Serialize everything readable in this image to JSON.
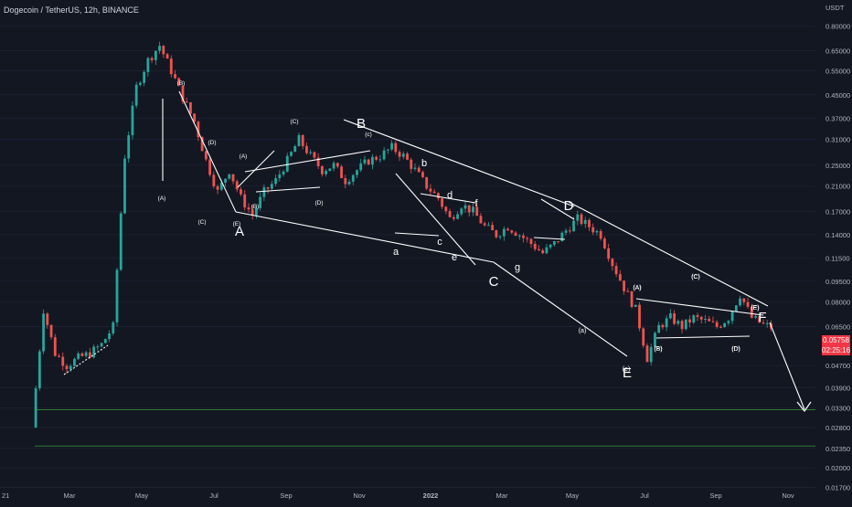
{
  "header": {
    "title": "Dogecoin / TetherUS, 12h, BINANCE"
  },
  "axis": {
    "currency": "USDT"
  },
  "current": {
    "price": "0.05758",
    "countdown": "02:25:16",
    "value": 0.05758
  },
  "colors": {
    "background": "#131722",
    "up": "#26a69a",
    "down": "#ef5350",
    "wave_line": "#ffffff",
    "support": "#2e7d32",
    "badge": "#f23645",
    "axis_text": "#b2b5be"
  },
  "chart_data": {
    "type": "candlestick",
    "title": "Dogecoin / TetherUS, 12h, BINANCE",
    "y_scale": "log",
    "ylim": [
      0.0168,
      0.92
    ],
    "y_ticks": [
      "0.80000",
      "0.65000",
      "0.55000",
      "0.45000",
      "0.37000",
      "0.31000",
      "0.25000",
      "0.21000",
      "0.17000",
      "0.14000",
      "0.11500",
      "0.09500",
      "0.08000",
      "0.06500",
      "0.04700",
      "0.03900",
      "0.03300",
      "0.02800",
      "0.02350",
      "0.02000",
      "0.01700"
    ],
    "x_ticks": [
      "21",
      "Mar",
      "May",
      "Jul",
      "Sep",
      "Nov",
      "2022",
      "Mar",
      "May",
      "Jul",
      "Sep",
      "Nov"
    ],
    "price_path": [
      [
        0,
        0.028
      ],
      [
        1,
        0.075
      ],
      [
        2,
        0.052
      ],
      [
        3,
        0.047
      ],
      [
        4,
        0.05
      ],
      [
        5,
        0.052
      ],
      [
        6,
        0.056
      ],
      [
        7,
        0.065
      ],
      [
        8,
        0.27
      ],
      [
        9,
        0.48
      ],
      [
        10,
        0.6
      ],
      [
        11,
        0.68
      ],
      [
        12,
        0.55
      ],
      [
        13,
        0.44
      ],
      [
        14,
        0.36
      ],
      [
        15,
        0.26
      ],
      [
        16,
        0.2
      ],
      [
        17,
        0.24
      ],
      [
        18,
        0.19
      ],
      [
        19,
        0.165
      ],
      [
        20,
        0.2
      ],
      [
        21,
        0.22
      ],
      [
        22,
        0.26
      ],
      [
        23,
        0.31
      ],
      [
        24,
        0.27
      ],
      [
        25,
        0.24
      ],
      [
        26,
        0.25
      ],
      [
        27,
        0.22
      ],
      [
        28,
        0.24
      ],
      [
        29,
        0.26
      ],
      [
        30,
        0.27
      ],
      [
        31,
        0.29
      ],
      [
        32,
        0.27
      ],
      [
        33,
        0.24
      ],
      [
        34,
        0.21
      ],
      [
        35,
        0.19
      ],
      [
        36,
        0.16
      ],
      [
        37,
        0.18
      ],
      [
        38,
        0.17
      ],
      [
        39,
        0.15
      ],
      [
        40,
        0.14
      ],
      [
        41,
        0.15
      ],
      [
        42,
        0.14
      ],
      [
        43,
        0.13
      ],
      [
        44,
        0.12
      ],
      [
        45,
        0.13
      ],
      [
        46,
        0.145
      ],
      [
        47,
        0.16
      ],
      [
        48,
        0.15
      ],
      [
        49,
        0.14
      ],
      [
        50,
        0.11
      ],
      [
        51,
        0.09
      ],
      [
        52,
        0.075
      ],
      [
        53,
        0.05
      ],
      [
        54,
        0.065
      ],
      [
        55,
        0.07
      ],
      [
        56,
        0.065
      ],
      [
        57,
        0.07
      ],
      [
        58,
        0.068
      ],
      [
        59,
        0.065
      ],
      [
        60,
        0.07
      ],
      [
        61,
        0.085
      ],
      [
        62,
        0.07
      ],
      [
        63,
        0.066
      ],
      [
        64,
        0.064
      ],
      [
        65,
        0.062
      ],
      [
        66,
        0.06
      ],
      [
        67,
        0.058
      ]
    ],
    "support_levels": [
      0.0325,
      0.024
    ],
    "wave_labels": [
      "A",
      "B",
      "C",
      "D",
      "E",
      "F",
      "a",
      "b",
      "c",
      "d",
      "e",
      "f",
      "g",
      "(A)",
      "(B)",
      "(C)",
      "(D)",
      "(E)",
      "(a)",
      "(e)"
    ],
    "annotations": [
      "(B)",
      "(A)",
      "(C)",
      "(D)",
      "(E)",
      "(A)",
      "(B)",
      "(C)",
      "(D)",
      "(c)",
      "(A)",
      "(B)",
      "(C)",
      "(D)",
      "(E)"
    ]
  }
}
